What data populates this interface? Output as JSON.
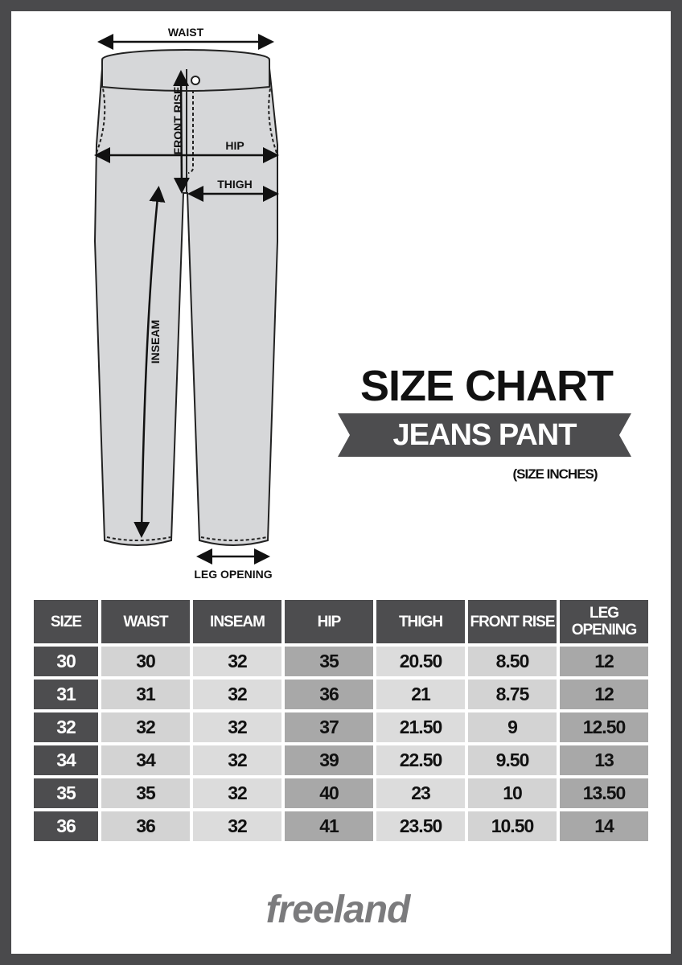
{
  "diagram": {
    "labels": {
      "waist": "WAIST",
      "front_rise": "FRONT RISE",
      "hip": "HIP",
      "thigh": "THIGH",
      "inseam": "INSEAM",
      "leg_opening": "LEG OPENING"
    }
  },
  "heading": {
    "title": "SIZE CHART",
    "subtitle": "JEANS PANT",
    "units": "(SIZE INCHES)"
  },
  "table": {
    "headers": [
      "SIZE",
      "WAIST",
      "INSEAM",
      "HIP",
      "THIGH",
      "FRONT RISE",
      "LEG OPENING"
    ],
    "rows": [
      [
        "30",
        "30",
        "32",
        "35",
        "20.50",
        "8.50",
        "12"
      ],
      [
        "31",
        "31",
        "32",
        "36",
        "21",
        "8.75",
        "12"
      ],
      [
        "32",
        "32",
        "32",
        "37",
        "21.50",
        "9",
        "12.50"
      ],
      [
        "34",
        "34",
        "32",
        "39",
        "22.50",
        "9.50",
        "13"
      ],
      [
        "35",
        "35",
        "32",
        "40",
        "23",
        "10",
        "13.50"
      ],
      [
        "36",
        "36",
        "32",
        "41",
        "23.50",
        "10.50",
        "14"
      ]
    ]
  },
  "brand": {
    "logo": "freeland"
  },
  "colors": {
    "frame": "#4a4a4c",
    "header": "#4d4d4f",
    "cell_light": "#dcdcdc",
    "cell_mid": "#d3d3d3",
    "cell_dark": "#a8a8a8",
    "logo": "#7b7b7d"
  }
}
